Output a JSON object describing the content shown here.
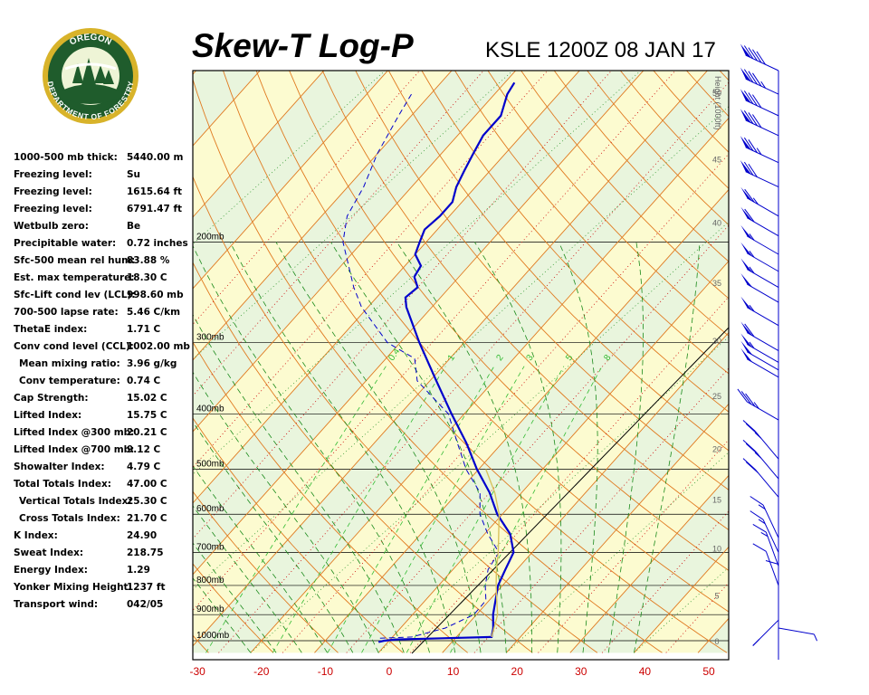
{
  "header": {
    "title": "Skew-T Log-P",
    "station": "KSLE 1200Z 08 JAN 17"
  },
  "logo": {
    "top_text": "OREGON",
    "bottom_text": "DEPARTMENT OF FORESTRY",
    "colors": {
      "ring": "#1f5c2c",
      "gold": "#d8b32a",
      "sky": "#eef4d6"
    }
  },
  "indices": [
    {
      "label": "1000-500 mb thick:",
      "value": "5440.00 m"
    },
    {
      "label": "Freezing level:",
      "value": "Su"
    },
    {
      "label": "Freezing level:",
      "value": "1615.64 ft"
    },
    {
      "label": "Freezing level:",
      "value": "6791.47 ft"
    },
    {
      "label": "Wetbulb zero:",
      "value": "Be"
    },
    {
      "label": "Precipitable water:",
      "value": "0.72 inches"
    },
    {
      "label": "Sfc-500 mean rel hum:",
      "value": "83.88 %"
    },
    {
      "label": "Est. max temperature:",
      "value": "18.30 C"
    },
    {
      "label": "Sfc-Lift cond lev (LCL):",
      "value": "998.60 mb"
    },
    {
      "label": "700-500 lapse rate:",
      "value": "5.46 C/km"
    },
    {
      "label": "ThetaE index:",
      "value": "1.71 C"
    },
    {
      "label": "Conv cond level (CCL):",
      "value": "1002.00 mb"
    },
    {
      "label": "Mean mixing ratio:",
      "value": "3.96 g/kg",
      "indent": true
    },
    {
      "label": "Conv temperature:",
      "value": "0.74 C",
      "indent": true
    },
    {
      "label": "Cap Strength:",
      "value": "15.02 C"
    },
    {
      "label": "Lifted Index:",
      "value": "15.75 C"
    },
    {
      "label": "Lifted Index @300 mb:",
      "value": "20.21 C"
    },
    {
      "label": "Lifted Index @700 mb:",
      "value": "9.12 C"
    },
    {
      "label": "Showalter Index:",
      "value": "4.79 C"
    },
    {
      "label": "Total Totals Index:",
      "value": "47.00 C"
    },
    {
      "label": "Vertical Totals Index:",
      "value": "25.30 C",
      "indent": true
    },
    {
      "label": "Cross Totals Index:",
      "value": "21.70 C",
      "indent": true
    },
    {
      "label": "K Index:",
      "value": "24.90"
    },
    {
      "label": "Sweat Index:",
      "value": "218.75"
    },
    {
      "label": "Energy Index:",
      "value": "1.29"
    },
    {
      "label": "Yonker Mixing Height:",
      "value": "1237 ft"
    },
    {
      "label": "Transport wind:",
      "value": "042/05"
    }
  ],
  "chart_data": {
    "type": "line",
    "x_ticks": [
      -30,
      -20,
      -10,
      0,
      10,
      20,
      30,
      40,
      50
    ],
    "pressure_levels": [
      {
        "p": 200,
        "label": "200mb"
      },
      {
        "p": 300,
        "label": "300mb"
      },
      {
        "p": 400,
        "label": "400mb"
      },
      {
        "p": 500,
        "label": "500mb"
      },
      {
        "p": 600,
        "label": "600mb"
      },
      {
        "p": 700,
        "label": "700mb"
      },
      {
        "p": 800,
        "label": "800mb"
      },
      {
        "p": 900,
        "label": "900mb"
      },
      {
        "p": 1000,
        "label": "1000mb"
      }
    ],
    "height_axis": {
      "label": "Height (1000ft)",
      "ticks": [
        "0",
        "5",
        "10",
        "15",
        "20",
        "25",
        "30",
        "35",
        "40",
        "45",
        "50"
      ]
    },
    "mixing_ratio_labels": [
      "0.4",
      "1",
      "2",
      "3",
      "5",
      "8"
    ],
    "series": [
      {
        "kind": "temperature",
        "color": "#0000cc",
        "points": [
          [
            1005,
            -1.5
          ],
          [
            1000,
            -0.8
          ],
          [
            995,
            1.0
          ],
          [
            990,
            8.0
          ],
          [
            985,
            15.5
          ],
          [
            950,
            14.5
          ],
          [
            900,
            12.6
          ],
          [
            850,
            11.0
          ],
          [
            800,
            9.3
          ],
          [
            750,
            8.2
          ],
          [
            700,
            7.1
          ],
          [
            650,
            4.0
          ],
          [
            600,
            -0.8
          ],
          [
            550,
            -5.0
          ],
          [
            500,
            -10.3
          ],
          [
            450,
            -15.6
          ],
          [
            400,
            -22.0
          ],
          [
            350,
            -29.0
          ],
          [
            300,
            -37.0
          ],
          [
            260,
            -44.0
          ],
          [
            250,
            -45.5
          ],
          [
            240,
            -45.0
          ],
          [
            230,
            -47.0
          ],
          [
            220,
            -47.5
          ],
          [
            210,
            -50.0
          ],
          [
            200,
            -51.0
          ],
          [
            190,
            -52.0
          ],
          [
            180,
            -51.5
          ],
          [
            170,
            -51.5
          ],
          [
            160,
            -53.0
          ],
          [
            150,
            -54.0
          ],
          [
            140,
            -55.0
          ],
          [
            130,
            -56.0
          ],
          [
            120,
            -56.0
          ],
          [
            110,
            -58.0
          ],
          [
            105,
            -58.5
          ]
        ]
      },
      {
        "kind": "dewpoint",
        "color": "#0000cc",
        "points": [
          [
            990,
            -1.8
          ],
          [
            985,
            3.0
          ],
          [
            950,
            7.0
          ],
          [
            900,
            9.6
          ],
          [
            850,
            9.5
          ],
          [
            800,
            7.3
          ],
          [
            750,
            5.5
          ],
          [
            700,
            4.8
          ],
          [
            650,
            0.5
          ],
          [
            600,
            -3.5
          ],
          [
            550,
            -6.5
          ],
          [
            500,
            -12.0
          ],
          [
            450,
            -17.0
          ],
          [
            400,
            -22.5
          ],
          [
            350,
            -32.0
          ],
          [
            320,
            -35.5
          ],
          [
            300,
            -42.0
          ],
          [
            260,
            -51.0
          ],
          [
            240,
            -55.0
          ],
          [
            200,
            -63.0
          ],
          [
            180,
            -66.0
          ],
          [
            160,
            -67.5
          ],
          [
            140,
            -70.0
          ],
          [
            120,
            -72.0
          ],
          [
            110,
            -73.0
          ]
        ]
      },
      {
        "kind": "parcel",
        "color": "#d8c25c",
        "points": [
          [
            985,
            15.5
          ],
          [
            900,
            13.3
          ],
          [
            850,
            11.2
          ],
          [
            800,
            9.0
          ],
          [
            750,
            6.8
          ],
          [
            700,
            4.7
          ],
          [
            650,
            2.2
          ],
          [
            600,
            -0.5
          ],
          [
            550,
            -4.2
          ],
          [
            500,
            -8.9
          ]
        ]
      }
    ],
    "wind_barbs": [
      {
        "p": 100,
        "dir": 245,
        "spd": 90
      },
      {
        "p": 110,
        "dir": 245,
        "spd": 85
      },
      {
        "p": 120,
        "dir": 245,
        "spd": 80
      },
      {
        "p": 130,
        "dir": 245,
        "spd": 80
      },
      {
        "p": 145,
        "dir": 245,
        "spd": 75
      },
      {
        "p": 160,
        "dir": 245,
        "spd": 70
      },
      {
        "p": 180,
        "dir": 240,
        "spd": 65
      },
      {
        "p": 195,
        "dir": 240,
        "spd": 60
      },
      {
        "p": 210,
        "dir": 240,
        "spd": 55
      },
      {
        "p": 225,
        "dir": 240,
        "spd": 55
      },
      {
        "p": 240,
        "dir": 240,
        "spd": 55
      },
      {
        "p": 255,
        "dir": 240,
        "spd": 50
      },
      {
        "p": 280,
        "dir": 240,
        "spd": 55
      },
      {
        "p": 310,
        "dir": 240,
        "spd": 60
      },
      {
        "p": 325,
        "dir": 240,
        "spd": 55
      },
      {
        "p": 335,
        "dir": 240,
        "spd": 50
      },
      {
        "p": 345,
        "dir": 240,
        "spd": 50
      },
      {
        "p": 410,
        "dir": 240,
        "spd": 35
      },
      {
        "p": 480,
        "dir": 220,
        "spd": 25
      },
      {
        "p": 520,
        "dir": 220,
        "spd": 25
      },
      {
        "p": 560,
        "dir": 220,
        "spd": 20
      },
      {
        "p": 660,
        "dir": 205,
        "spd": 15
      },
      {
        "p": 700,
        "dir": 205,
        "spd": 15
      },
      {
        "p": 740,
        "dir": 200,
        "spd": 15
      },
      {
        "p": 800,
        "dir": 200,
        "spd": 10
      },
      {
        "p": 850,
        "dir": 180,
        "spd": 10
      },
      {
        "p": 920,
        "dir": 315,
        "spd": 10
      },
      {
        "p": 950,
        "dir": 80,
        "spd": 5
      }
    ]
  },
  "colors": {
    "frame": "#000000",
    "isotherm": "#e07a20",
    "dry_adiabat": "#e07a20",
    "moist_adiabat": "#1a8a1a",
    "mixing_ratio": "#33bb33",
    "isobar": "#000000",
    "band_yellow": "#fcfbd0",
    "band_green": "#e9f5dd",
    "x_tick_text": "#cc0000",
    "dotted_red": "#cc0000",
    "dotted_green": "#339933"
  }
}
